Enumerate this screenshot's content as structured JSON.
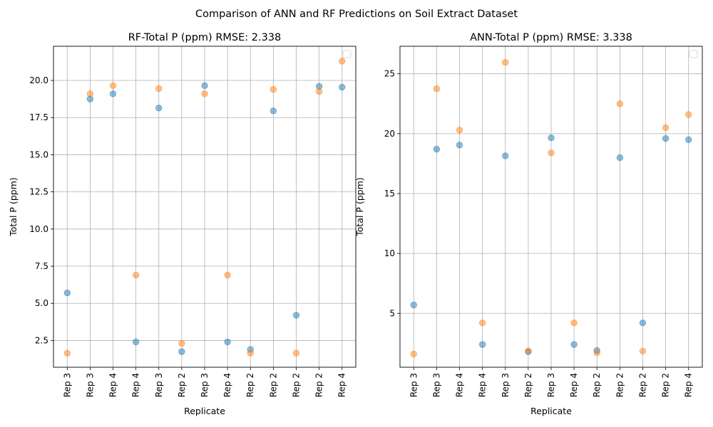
{
  "suptitle": "Comparison of ANN and RF Predictions on Soil Extract Dataset",
  "colors": {
    "series_a": "#1f77b4",
    "series_b": "#ff7f0e",
    "grid": "#b0b0b0"
  },
  "chart_data": [
    {
      "type": "scatter",
      "title": "RF-Total P (ppm) RMSE: 2.338",
      "xlabel": "Replicate",
      "ylabel": "Total P (ppm)",
      "categories": [
        "Rep 3",
        "Rep 3",
        "Rep 4",
        "Rep 4",
        "Rep 3",
        "Rep 2",
        "Rep 3",
        "Rep 4",
        "Rep 2",
        "Rep 2",
        "Rep 2",
        "Rep 2",
        "Rep 4"
      ],
      "ylim": [
        0.7,
        22.3
      ],
      "yticks": [
        2.5,
        5.0,
        7.5,
        10.0,
        12.5,
        15.0,
        17.5,
        20.0
      ],
      "ytick_labels": [
        "2.5",
        "5.0",
        "7.5",
        "10.0",
        "12.5",
        "15.0",
        "17.5",
        "20.0"
      ],
      "grid": true,
      "legend": "top-right (empty)",
      "series": [
        {
          "values": [
            5.7,
            18.75,
            19.1,
            2.4,
            18.15,
            1.75,
            19.65,
            2.4,
            1.9,
            17.95,
            4.2,
            19.6,
            19.55
          ]
        },
        {
          "values": [
            1.65,
            19.1,
            19.65,
            6.9,
            19.45,
            2.3,
            19.1,
            6.9,
            1.65,
            19.4,
            1.65,
            19.25,
            21.3
          ]
        }
      ]
    },
    {
      "type": "scatter",
      "title": "ANN-Total P (ppm) RMSE: 3.338",
      "xlabel": "Replicate",
      "ylabel": "Total P (ppm)",
      "categories": [
        "Rep 3",
        "Rep 3",
        "Rep 4",
        "Rep 4",
        "Rep 3",
        "Rep 2",
        "Rep 3",
        "Rep 4",
        "Rep 2",
        "Rep 2",
        "Rep 2",
        "Rep 2",
        "Rep 4"
      ],
      "ylim": [
        0.5,
        27.3
      ],
      "yticks": [
        5,
        10,
        15,
        20,
        25
      ],
      "ytick_labels": [
        "5",
        "10",
        "15",
        "20",
        "25"
      ],
      "grid": true,
      "legend": "top-right (empty)",
      "series": [
        {
          "values": [
            5.7,
            18.7,
            19.05,
            2.4,
            18.15,
            1.8,
            19.65,
            2.4,
            1.9,
            18.0,
            4.2,
            19.6,
            19.5
          ]
        },
        {
          "values": [
            1.6,
            23.75,
            20.3,
            4.2,
            25.95,
            1.85,
            18.4,
            4.2,
            1.7,
            22.5,
            1.85,
            20.5,
            21.6
          ]
        }
      ]
    }
  ]
}
